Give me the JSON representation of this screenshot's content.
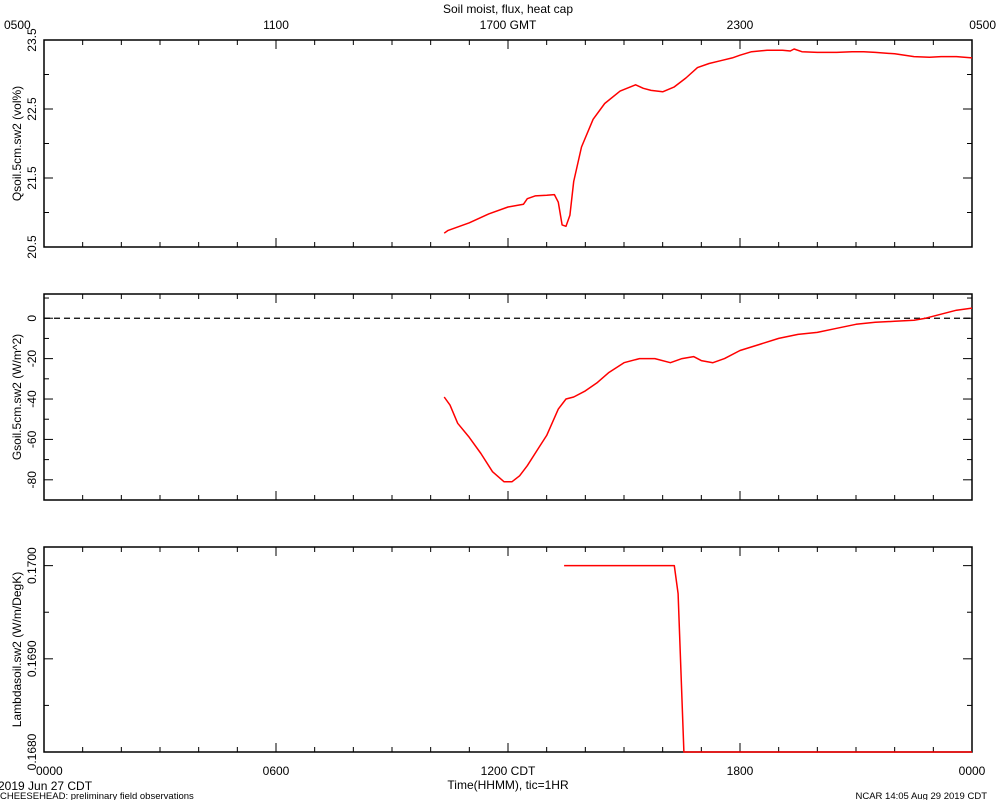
{
  "colors": {
    "series": "#ff0000",
    "axis": "#000000",
    "reference": "#000000"
  },
  "title": "Soil moist, flux, heat cap",
  "footer": {
    "date": "2019 Jun 27 CDT",
    "project": "CHEESEHEAD: preliminary field observations",
    "stamp": "NCAR 14:05 Aug 29 2019 CDT"
  },
  "xaxis_bottom": {
    "label": "Time(HHMM), tic=1HR",
    "range": [
      0,
      24
    ],
    "major_ticks": [
      {
        "value": 0,
        "label": "0000"
      },
      {
        "value": 6,
        "label": "0600"
      },
      {
        "value": 12,
        "label": "1200 CDT"
      },
      {
        "value": 18,
        "label": "1800"
      },
      {
        "value": 24,
        "label": "0000"
      }
    ]
  },
  "xaxis_top": {
    "major_ticks": [
      {
        "value": 0,
        "label": "0500"
      },
      {
        "value": 6,
        "label": "1100"
      },
      {
        "value": 12,
        "label": "1700 GMT"
      },
      {
        "value": 18,
        "label": "2300"
      },
      {
        "value": 24,
        "label": "0500"
      }
    ]
  },
  "chart_data": [
    {
      "type": "line",
      "ylabel": "Qsoil.5cm.sw2 (vol%)",
      "ylim": [
        20.5,
        23.5
      ],
      "yticks": [
        {
          "value": 20.5,
          "label": "20.5"
        },
        {
          "value": 21.5,
          "label": "21.5"
        },
        {
          "value": 22.5,
          "label": "22.5"
        },
        {
          "value": 23.5,
          "label": "23.5"
        }
      ],
      "minor_yticks": [
        21.0,
        22.0,
        23.0
      ],
      "series": [
        {
          "x": [
            10.35,
            10.45,
            11.0,
            11.5,
            12.0,
            12.4,
            12.5,
            12.7,
            13.0,
            13.2,
            13.3,
            13.4,
            13.5,
            13.6,
            13.7,
            13.9,
            14.2,
            14.5,
            14.9,
            15.3,
            15.5,
            15.7,
            16.0,
            16.3,
            16.6,
            16.9,
            17.2,
            17.5,
            17.8,
            18.0,
            18.3,
            18.7,
            19.1,
            19.3,
            19.4,
            19.6,
            20.0,
            20.5,
            20.9,
            21.2,
            21.5,
            22.0,
            22.5,
            22.9,
            23.2,
            23.6,
            24.0
          ],
          "y": [
            20.7,
            20.74,
            20.85,
            20.98,
            21.08,
            21.12,
            21.2,
            21.24,
            21.25,
            21.26,
            21.15,
            20.82,
            20.8,
            20.96,
            21.45,
            21.95,
            22.35,
            22.58,
            22.76,
            22.85,
            22.8,
            22.77,
            22.75,
            22.82,
            22.95,
            23.1,
            23.16,
            23.2,
            23.24,
            23.28,
            23.33,
            23.35,
            23.35,
            23.34,
            23.37,
            23.33,
            23.32,
            23.32,
            23.33,
            23.33,
            23.32,
            23.3,
            23.26,
            23.25,
            23.26,
            23.26,
            23.24
          ]
        }
      ]
    },
    {
      "type": "line",
      "ylabel": "Gsoil.5cm.sw2 (W/m^2)",
      "ylim": [
        -90,
        12
      ],
      "yticks": [
        {
          "value": -80,
          "label": "-80"
        },
        {
          "value": -60,
          "label": "-60"
        },
        {
          "value": -40,
          "label": "-40"
        },
        {
          "value": -20,
          "label": "-20"
        },
        {
          "value": 0,
          "label": "0"
        }
      ],
      "minor_yticks": [
        -70,
        -50,
        -30,
        -10,
        10
      ],
      "reference_line": 0,
      "series": [
        {
          "x": [
            10.35,
            10.5,
            10.7,
            11.0,
            11.3,
            11.6,
            11.9,
            12.1,
            12.3,
            12.5,
            12.8,
            13.0,
            13.3,
            13.5,
            13.7,
            14.0,
            14.3,
            14.6,
            15.0,
            15.4,
            15.8,
            16.2,
            16.5,
            16.8,
            17.0,
            17.3,
            17.6,
            18.0,
            18.5,
            19.0,
            19.5,
            20.0,
            20.5,
            21.0,
            21.5,
            22.0,
            22.5,
            22.8,
            23.0,
            23.3,
            23.6,
            24.0
          ],
          "y": [
            -39,
            -43,
            -52,
            -59,
            -67,
            -76,
            -81,
            -81,
            -78,
            -73,
            -64,
            -58,
            -45,
            -40,
            -39,
            -36,
            -32,
            -27,
            -22,
            -20,
            -20,
            -22,
            -20,
            -19,
            -21,
            -22,
            -20,
            -16,
            -13,
            -10,
            -8,
            -7,
            -5,
            -3,
            -2,
            -1.5,
            -1,
            0,
            1,
            2.5,
            4,
            5
          ]
        }
      ]
    },
    {
      "type": "line",
      "ylabel": "Lambdasoil.sw2 (W/m/DegK)",
      "ylim": [
        0.168,
        0.1702
      ],
      "yticks": [
        {
          "value": 0.168,
          "label": "0.1680"
        },
        {
          "value": 0.169,
          "label": "0.1690"
        },
        {
          "value": 0.17,
          "label": "0.1700"
        }
      ],
      "minor_yticks": [
        0.1685,
        0.1695
      ],
      "series": [
        {
          "x": [
            13.45,
            16.3,
            16.4,
            16.55,
            24.0
          ],
          "y": [
            0.17,
            0.17,
            0.1697,
            0.168,
            0.168
          ]
        }
      ]
    }
  ]
}
